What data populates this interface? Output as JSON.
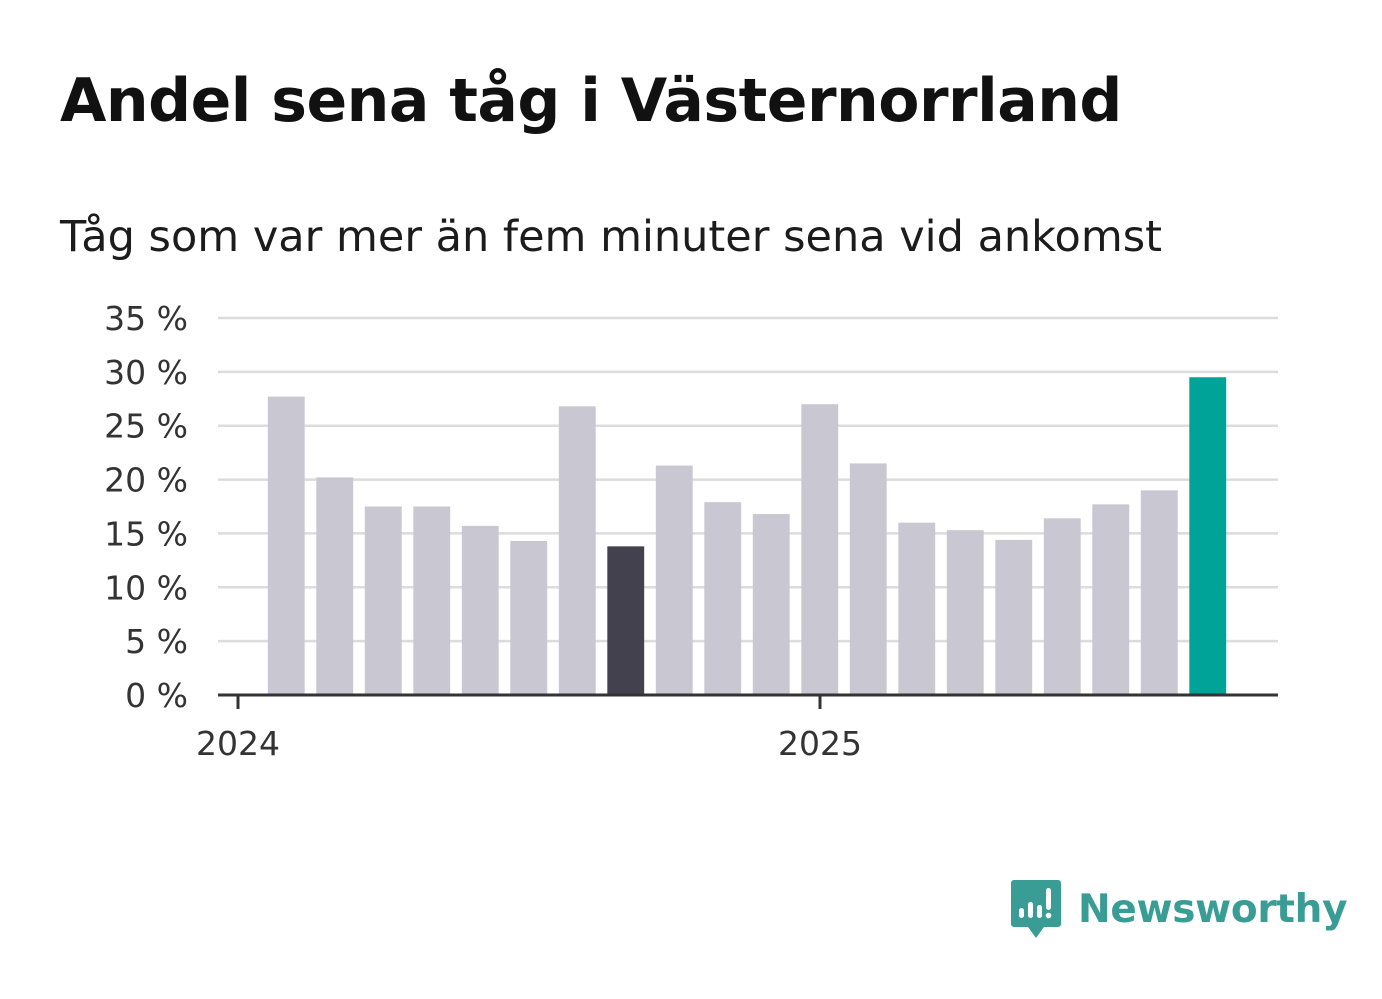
{
  "header": {
    "title": "Andel sena tåg i Västernorrland",
    "subtitle": "Tåg som var mer än fem minuter sena vid ankomst"
  },
  "brand": {
    "name": "Newsworthy",
    "icon": "bar-chart-speech-bubble-icon",
    "color": "#3a9d95"
  },
  "chart_data": {
    "type": "bar",
    "title": "Andel sena tåg i Västernorrland",
    "subtitle": "Tåg som var mer än fem minuter sena vid ankomst",
    "xlabel": "",
    "ylabel": "",
    "ylim": [
      0,
      35
    ],
    "yticks": [
      0,
      5,
      10,
      15,
      20,
      25,
      30,
      35
    ],
    "ytick_suffix": " %",
    "xticks": [
      {
        "label": "2024",
        "index": -0.5
      },
      {
        "label": "2025",
        "index": 11.5
      }
    ],
    "grid": true,
    "categories": [
      "2024-01",
      "2024-02",
      "2024-03",
      "2024-04",
      "2024-05",
      "2024-06",
      "2024-07",
      "2024-08",
      "2024-09",
      "2024-10",
      "2024-11",
      "2024-12",
      "2025-01",
      "2025-02",
      "2025-03",
      "2025-04",
      "2025-05",
      "2025-06",
      "2025-07",
      "2025-08"
    ],
    "values": [
      27.7,
      20.2,
      17.5,
      17.5,
      15.7,
      14.3,
      26.8,
      13.8,
      21.3,
      17.9,
      16.8,
      27.0,
      21.5,
      16.0,
      15.3,
      14.4,
      16.4,
      17.7,
      19.0,
      29.5
    ],
    "highlight": {
      "7": "#42414d",
      "19": "#00a398"
    },
    "colors": {
      "default": "#c8c7d2",
      "grid": "#dcdcdc",
      "axis": "#333333",
      "tick_text": "#333333"
    }
  }
}
